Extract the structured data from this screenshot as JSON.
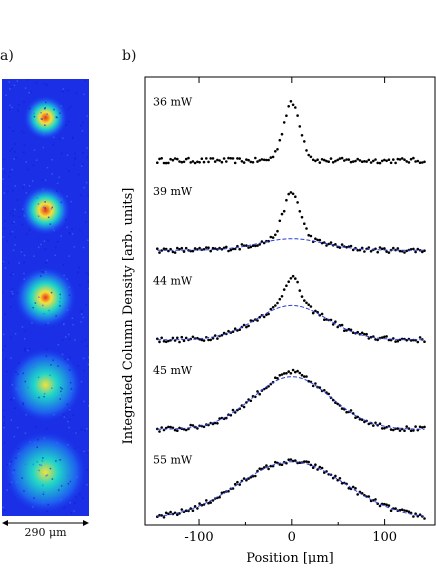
{
  "panels": {
    "a_label": "a)",
    "b_label": "b)"
  },
  "image_panel": {
    "scale_bar_label": "290 μm",
    "spots": [
      {
        "intensity": 0.95,
        "size": 0.35
      },
      {
        "intensity": 0.95,
        "size": 0.45
      },
      {
        "intensity": 0.85,
        "size": 0.65
      },
      {
        "intensity": 0.6,
        "size": 0.85
      },
      {
        "intensity": 0.45,
        "size": 1.0
      }
    ],
    "colors": {
      "background": "#1a2fe6",
      "low": "#1e5ef0",
      "mid": "#1fd6c9",
      "high": "#f6e03a",
      "peak": "#e8321a"
    }
  },
  "chart_data": {
    "type": "scatter",
    "xlabel": "Position [μm]",
    "ylabel": "Integrated Column Density [arb. units]",
    "xlim": [
      -155,
      150
    ],
    "xticks": [
      -100,
      0,
      100
    ],
    "xtick_labels": [
      "-100",
      "0",
      "100"
    ],
    "series": [
      {
        "name": "36 mW",
        "peak": 1.0,
        "core_width": 9,
        "thermal_amp": 0.0,
        "thermal_width": 40,
        "fit": false
      },
      {
        "name": "39 mW",
        "peak": 1.0,
        "core_width": 9,
        "thermal_amp": 0.2,
        "thermal_width": 35,
        "fit": true
      },
      {
        "name": "44 mW",
        "peak": 1.1,
        "core_width": 8,
        "thermal_amp": 0.6,
        "thermal_width": 38,
        "fit": true
      },
      {
        "name": "45 mW",
        "peak": 1.0,
        "core_width": 10,
        "thermal_amp": 0.92,
        "thermal_width": 42,
        "fit": true
      },
      {
        "name": "55 mW",
        "peak": 1.0,
        "core_width": 0,
        "thermal_amp": 1.0,
        "thermal_width": 58,
        "fit": true
      }
    ],
    "fit_style": "dashed",
    "colors": {
      "data": "#000000",
      "fit": "#2a3bd6",
      "axis": "#000000"
    }
  }
}
